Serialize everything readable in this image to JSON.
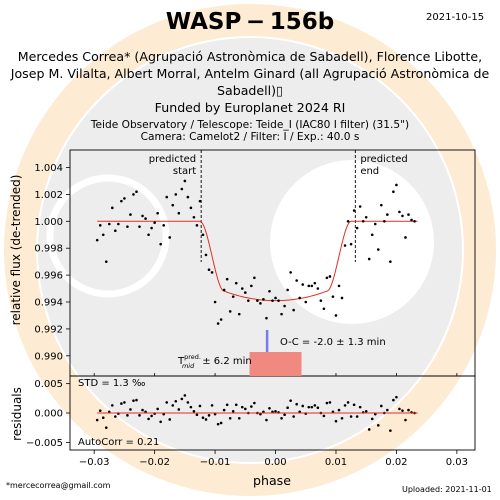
{
  "header": {
    "title": "WASP − 156b",
    "date": "2021-10-15",
    "authors": "Mercedes Correa* (Agrupació Astronòmica de Sabadell), Florence Libotte, Josep M. Vilalta, Albert Morral, Antelm Ginard (all Agrupació Astronòmica de Sabadell)",
    "authors_suffix": "▯",
    "funded": "Funded by Europlanet 2024 RI",
    "observatory": "Teide Observatory / Telescope: Teide_I (IAC80 I filter) (31.5\")",
    "camera": "Camera: Camelot2 / Filter: I / Exp.: 40.0 s"
  },
  "footer": {
    "email": "*mercecorrea@gmail.com",
    "uploaded": "Uploaded: 2021-11-01"
  },
  "chart_data": [
    {
      "type": "scatter",
      "panel": "light-curve",
      "ylabel": "relative flux (de-trended)",
      "xlim": [
        -0.034,
        0.033
      ],
      "ylim": [
        0.9885,
        1.0053
      ],
      "yticks": [
        0.99,
        0.992,
        0.994,
        0.996,
        0.998,
        1.0,
        1.002,
        1.004
      ],
      "tick_labels": [
        "0.990",
        "0.992",
        "0.994",
        "0.996",
        "0.998",
        "1.000",
        "1.002",
        "1.004"
      ],
      "marker_color": "#000000",
      "model_color": "#e03020",
      "annotations": {
        "predicted_start": {
          "x": -0.0123,
          "label": "predicted\nstart"
        },
        "predicted_end": {
          "x": 0.0132,
          "label": "predicted\nend"
        },
        "oc_text": "O-C = -2.0 ± 1.3 min",
        "oc_value": -0.0014,
        "tmid_prefix": "T",
        "tmid_sup": "pred.",
        "tmid_sub": "mid",
        "tmid_suffix": "± 6.2 min",
        "tmid_halfwidth": 0.0043
      },
      "model": {
        "depth": 0.0059,
        "t1": -0.0125,
        "t2": -0.0085,
        "t3": 0.0085,
        "t4": 0.0125,
        "shift": 0.0
      },
      "x": [
        -0.0295,
        -0.029,
        -0.0285,
        -0.028,
        -0.0275,
        -0.027,
        -0.0265,
        -0.026,
        -0.0255,
        -0.025,
        -0.0245,
        -0.024,
        -0.0235,
        -0.023,
        -0.0225,
        -0.022,
        -0.0215,
        -0.021,
        -0.0205,
        -0.02,
        -0.0195,
        -0.019,
        -0.0185,
        -0.018,
        -0.0175,
        -0.017,
        -0.0165,
        -0.016,
        -0.0155,
        -0.015,
        -0.0145,
        -0.014,
        -0.0135,
        -0.013,
        -0.0125,
        -0.012,
        -0.0115,
        -0.011,
        -0.0105,
        -0.01,
        -0.0095,
        -0.009,
        -0.0085,
        -0.008,
        -0.0075,
        -0.007,
        -0.0065,
        -0.006,
        -0.0055,
        -0.005,
        -0.0045,
        -0.004,
        -0.0035,
        -0.003,
        -0.0025,
        -0.002,
        -0.0015,
        -0.001,
        -0.0005,
        0.0,
        0.0005,
        0.001,
        0.0015,
        0.002,
        0.0025,
        0.003,
        0.0035,
        0.004,
        0.0045,
        0.005,
        0.0055,
        0.006,
        0.0065,
        0.007,
        0.0075,
        0.008,
        0.0085,
        0.009,
        0.0095,
        0.01,
        0.0105,
        0.011,
        0.0115,
        0.012,
        0.0125,
        0.013,
        0.0135,
        0.014,
        0.0145,
        0.015,
        0.0155,
        0.016,
        0.0165,
        0.017,
        0.0175,
        0.018,
        0.0185,
        0.019,
        0.0195,
        0.02,
        0.0205,
        0.021,
        0.0215,
        0.022,
        0.0225,
        0.023
      ],
      "y": [
        0.9986,
        0.9997,
        0.999,
        0.997,
        0.9998,
        1.001,
        0.9993,
        0.9998,
        1.0015,
        1.0017,
        0.9996,
        1.0005,
        1.002,
        1.0022,
        0.9996,
        1.0004,
        1.0002,
        0.999,
        0.9995,
        0.9999,
        1.0006,
        0.9983,
        0.9997,
        1.0018,
        0.9988,
        1.0012,
        1.002,
        1.0006,
        1.0024,
        1.003,
        1.0018,
        1.001,
        1.0003,
        0.9997,
        1.0015,
        0.999,
        0.9975,
        0.9964,
        0.9962,
        0.994,
        0.9924,
        0.9927,
        0.9949,
        0.9957,
        0.9933,
        0.9944,
        0.9954,
        0.9931,
        0.995,
        0.9947,
        0.9941,
        0.9952,
        0.9958,
        0.9941,
        0.9939,
        0.9942,
        0.9928,
        0.9948,
        0.9941,
        0.9943,
        0.9941,
        0.9931,
        0.9937,
        0.9949,
        0.9962,
        0.9934,
        0.9956,
        0.9943,
        0.9953,
        0.994,
        0.9952,
        0.9952,
        0.9954,
        0.995,
        0.9941,
        0.9935,
        0.9958,
        0.9959,
        0.9944,
        0.993,
        0.9952,
        0.9943,
        0.9982,
        1.0,
        0.9983,
        1.0008,
        0.9995,
        1.0011,
        1.0,
        1.0003,
        0.9972,
        0.999,
        0.9998,
        0.9979,
        1.0012,
        1.0,
        1.0005,
        0.997,
        1.0022,
        1.0027,
        1.0007,
        1.0004,
        0.9988,
        1.0005,
        1.0001,
        1.0
      ]
    },
    {
      "type": "scatter",
      "panel": "residuals",
      "xlabel": "phase",
      "ylabel": "residuals",
      "xlim": [
        -0.034,
        0.033
      ],
      "ylim": [
        -0.0063,
        0.0063
      ],
      "xticks": [
        -0.03,
        -0.02,
        -0.01,
        0.0,
        0.01,
        0.02,
        0.03
      ],
      "xtick_labels": [
        "−0.03",
        "−0.02",
        "−0.01",
        "0.00",
        "0.01",
        "0.02",
        "0.03"
      ],
      "yticks": [
        0.005,
        0.0,
        -0.005
      ],
      "ytick_labels": [
        "0.005",
        "0.000",
        "−0.005"
      ],
      "std_text": "STD = 1.3 ‰",
      "autocorr_text": "AutoCorr = 0.21",
      "x": [
        -0.0295,
        -0.029,
        -0.0285,
        -0.028,
        -0.0275,
        -0.027,
        -0.0265,
        -0.026,
        -0.0255,
        -0.025,
        -0.0245,
        -0.024,
        -0.0235,
        -0.023,
        -0.0225,
        -0.022,
        -0.0215,
        -0.021,
        -0.0205,
        -0.02,
        -0.0195,
        -0.019,
        -0.0185,
        -0.018,
        -0.0175,
        -0.017,
        -0.0165,
        -0.016,
        -0.0155,
        -0.015,
        -0.0145,
        -0.014,
        -0.0135,
        -0.013,
        -0.0125,
        -0.012,
        -0.0115,
        -0.011,
        -0.0105,
        -0.01,
        -0.0095,
        -0.009,
        -0.0085,
        -0.008,
        -0.0075,
        -0.007,
        -0.0065,
        -0.006,
        -0.0055,
        -0.005,
        -0.0045,
        -0.004,
        -0.0035,
        -0.003,
        -0.0025,
        -0.002,
        -0.0015,
        -0.001,
        -0.0005,
        0.0,
        0.0005,
        0.001,
        0.0015,
        0.002,
        0.0025,
        0.003,
        0.0035,
        0.004,
        0.0045,
        0.005,
        0.0055,
        0.006,
        0.0065,
        0.007,
        0.0075,
        0.008,
        0.0085,
        0.009,
        0.0095,
        0.01,
        0.0105,
        0.011,
        0.0115,
        0.012,
        0.0125,
        0.013,
        0.0135,
        0.014,
        0.0145,
        0.015,
        0.0155,
        0.016,
        0.0165,
        0.017,
        0.0175,
        0.018,
        0.0185,
        0.019,
        0.0195,
        0.02,
        0.0205,
        0.021,
        0.0215,
        0.022,
        0.0225,
        0.023
      ],
      "y": [
        -0.0012,
        0.0004,
        -0.0008,
        -0.0025,
        0.0002,
        0.0013,
        -0.0006,
        -0.0001,
        0.0016,
        0.0018,
        -0.0004,
        0.0006,
        0.0021,
        0.0022,
        -0.0004,
        0.0005,
        0.0002,
        -0.001,
        -0.0005,
        -0.0001,
        0.0007,
        -0.0015,
        -0.0002,
        0.0018,
        -0.0011,
        0.0013,
        0.002,
        0.0006,
        0.0024,
        0.003,
        0.0018,
        0.001,
        0.0003,
        -0.0003,
        0.0012,
        -0.0008,
        -0.0011,
        -0.0004,
        0.0013,
        -0.0002,
        -0.0019,
        -0.0017,
        0.0005,
        0.0014,
        -0.0009,
        0.0003,
        0.0014,
        -0.0009,
        0.001,
        0.0007,
        0.0,
        0.0011,
        0.0017,
        0.0,
        -0.0002,
        0.0002,
        -0.0012,
        0.0008,
        0.0002,
        0.0003,
        0.0001,
        -0.0009,
        -0.0003,
        0.0009,
        0.0021,
        -0.0006,
        0.0015,
        0.0002,
        0.0012,
        -0.0001,
        0.001,
        0.001,
        0.0013,
        0.0009,
        0.0,
        -0.0005,
        0.0017,
        0.0018,
        0.0002,
        -0.0014,
        0.0005,
        -0.0009,
        0.0013,
        0.0018,
        -0.0006,
        0.0014,
        -0.0006,
        0.001,
        0.0001,
        0.0003,
        -0.0028,
        -0.001,
        -0.0002,
        -0.0021,
        0.0012,
        0.0,
        0.0005,
        -0.003,
        0.0022,
        0.0027,
        0.0007,
        0.0004,
        -0.0012,
        0.0005,
        0.0001,
        0.0
      ]
    }
  ]
}
